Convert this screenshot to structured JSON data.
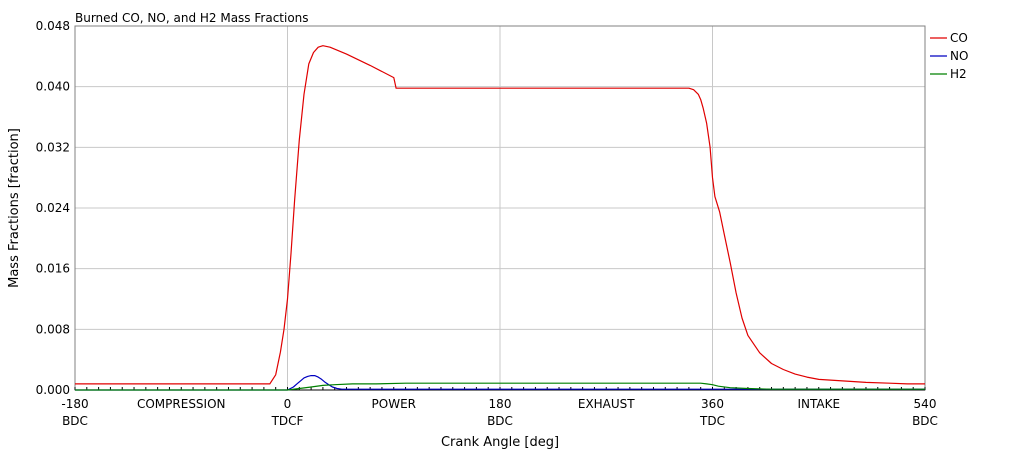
{
  "chart_data": {
    "type": "line",
    "title": "Burned CO, NO, and H2 Mass Fractions",
    "xlabel": "Crank Angle [deg]",
    "ylabel": "Mass Fractions [fraction]",
    "xlim": [
      -180,
      540
    ],
    "ylim": [
      0,
      0.048
    ],
    "grid": true,
    "legend_position": "right",
    "y_ticks": [
      "0.000",
      "0.008",
      "0.016",
      "0.024",
      "0.032",
      "0.040",
      "0.048"
    ],
    "x_ticks": [
      {
        "value": -180,
        "label": "-180",
        "sublabel": "BDC"
      },
      {
        "value": 0,
        "label": "0",
        "sublabel": "TDCF"
      },
      {
        "value": 180,
        "label": "180",
        "sublabel": "BDC"
      },
      {
        "value": 360,
        "label": "360",
        "sublabel": "TDC"
      },
      {
        "value": 540,
        "label": "540",
        "sublabel": "BDC"
      }
    ],
    "phase_labels": [
      {
        "value": -90,
        "label": "COMPRESSION"
      },
      {
        "value": 90,
        "label": "POWER"
      },
      {
        "value": 270,
        "label": "EXHAUST"
      },
      {
        "value": 450,
        "label": "INTAKE"
      }
    ],
    "series": [
      {
        "name": "CO",
        "color": "#e00000",
        "x": [
          -180,
          -15,
          -10,
          -6,
          -3,
          0,
          3,
          6,
          10,
          14,
          18,
          22,
          26,
          30,
          36,
          50,
          70,
          90,
          92,
          180,
          270,
          340,
          344,
          348,
          350,
          352,
          355,
          358,
          360,
          362,
          366,
          370,
          375,
          380,
          385,
          390,
          400,
          410,
          420,
          430,
          440,
          450,
          470,
          490,
          510,
          525,
          540
        ],
        "y": [
          0.0008,
          0.0008,
          0.002,
          0.005,
          0.008,
          0.012,
          0.018,
          0.025,
          0.033,
          0.039,
          0.043,
          0.0445,
          0.0452,
          0.0454,
          0.0452,
          0.0443,
          0.0428,
          0.0412,
          0.0398,
          0.0398,
          0.0398,
          0.0398,
          0.0396,
          0.039,
          0.0383,
          0.0372,
          0.0352,
          0.032,
          0.028,
          0.0255,
          0.0235,
          0.0205,
          0.0168,
          0.0128,
          0.0095,
          0.0072,
          0.0049,
          0.0035,
          0.0027,
          0.0021,
          0.0017,
          0.0014,
          0.0012,
          0.001,
          0.0009,
          0.0008,
          0.0008
        ]
      },
      {
        "name": "NO",
        "color": "#0000c0",
        "x": [
          -180,
          0,
          5,
          8,
          11,
          14,
          17,
          20,
          23,
          26,
          29,
          32,
          35,
          38,
          42,
          46,
          540
        ],
        "y": [
          0.0,
          0.0,
          0.0004,
          0.0008,
          0.0012,
          0.0016,
          0.0018,
          0.0019,
          0.0019,
          0.0017,
          0.0014,
          0.001,
          0.0007,
          0.0004,
          0.0002,
          0.0001,
          0.0001
        ]
      },
      {
        "name": "H2",
        "color": "#008000",
        "x": [
          -180,
          0,
          10,
          20,
          30,
          40,
          55,
          75,
          100,
          180,
          270,
          340,
          350,
          355,
          360,
          365,
          375,
          390,
          410,
          440,
          540
        ],
        "y": [
          0.0,
          0.0,
          0.0002,
          0.0004,
          0.0006,
          0.0007,
          0.0008,
          0.0008,
          0.0009,
          0.0009,
          0.0009,
          0.0009,
          0.0009,
          0.0008,
          0.0007,
          0.0005,
          0.0003,
          0.0002,
          0.0001,
          0.0001,
          0.0001
        ]
      }
    ]
  }
}
